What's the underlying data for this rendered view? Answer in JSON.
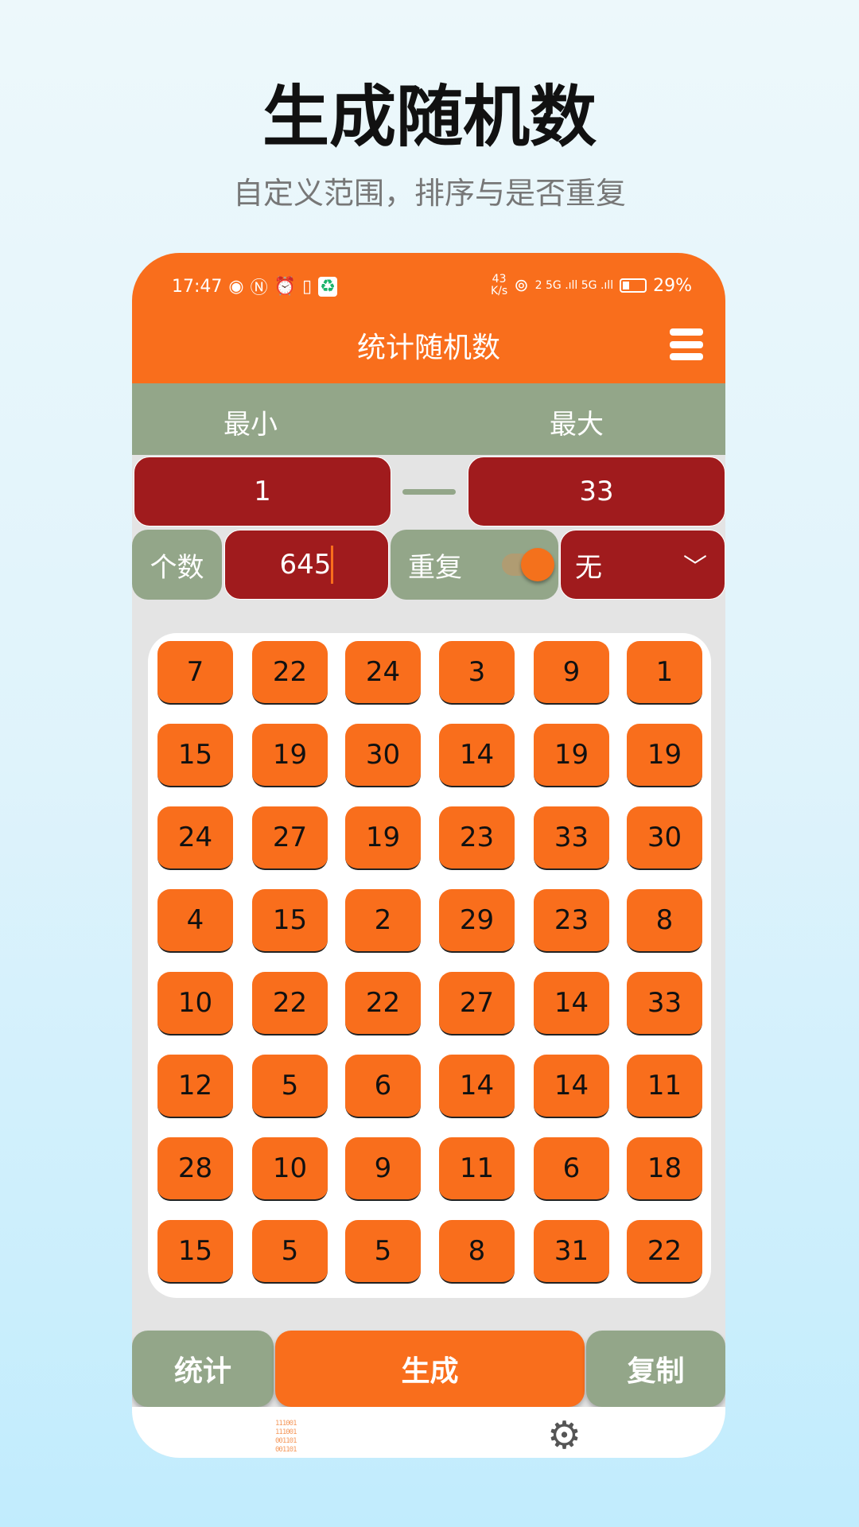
{
  "promo": {
    "title": "生成随机数",
    "subtitle": "自定义范围，排序与是否重复"
  },
  "status": {
    "time": "17:47",
    "net_speed": "43",
    "net_unit": "K/s",
    "signal": "2 5G .ıll 5G .ıll",
    "battery": "29%"
  },
  "app": {
    "title": "统计随机数"
  },
  "range": {
    "min_label": "最小",
    "max_label": "最大",
    "min_value": "1",
    "max_value": "33"
  },
  "count": {
    "label": "个数",
    "value": "645"
  },
  "repeat": {
    "label": "重复",
    "enabled": true
  },
  "sort": {
    "selected": "无"
  },
  "numbers": [
    [
      7,
      22,
      24,
      3,
      9,
      1
    ],
    [
      15,
      19,
      30,
      14,
      19,
      19
    ],
    [
      24,
      27,
      19,
      23,
      33,
      30
    ],
    [
      4,
      15,
      2,
      29,
      23,
      8
    ],
    [
      10,
      22,
      22,
      27,
      14,
      33
    ],
    [
      12,
      5,
      6,
      14,
      14,
      11
    ],
    [
      28,
      10,
      9,
      11,
      6,
      18
    ],
    [
      15,
      5,
      5,
      8,
      31,
      22
    ]
  ],
  "actions": {
    "stats": "统计",
    "generate": "生成",
    "copy": "复制"
  },
  "colors": {
    "accent": "#f96e1c",
    "dark_red": "#a01b1d",
    "sage": "#93a689"
  }
}
